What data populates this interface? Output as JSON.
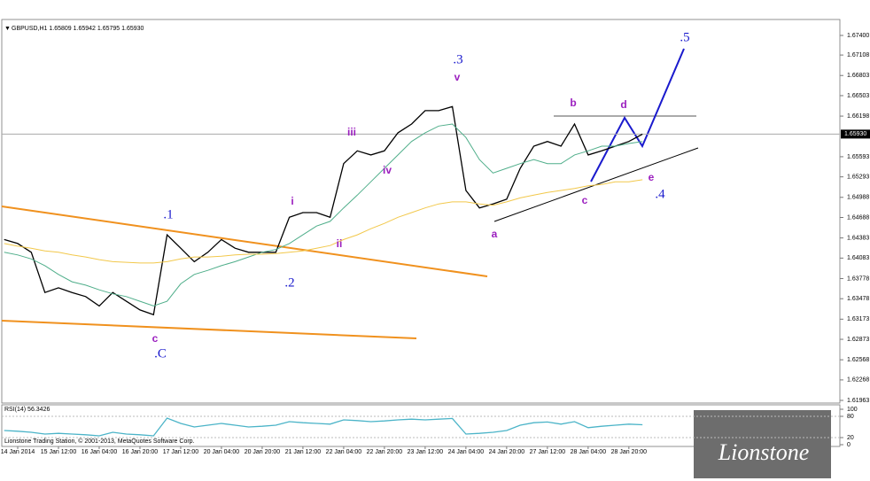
{
  "header": {
    "symbol": "GBPUSD,H1  1.65809 1.65942 1.65795 1.65930"
  },
  "footer": {
    "copyright": "Lionstone Trading Station, © 2001-2013, MetaQuotes Software Corp.",
    "logo": "Lionstone"
  },
  "chart_data": [
    {
      "type": "line",
      "categories": [
        null,
        "14 Jan 2014",
        null,
        null,
        "15 Jan 12:00",
        null,
        null,
        "16 Jan 04:00",
        null,
        null,
        "16 Jan 20:00",
        null,
        null,
        "17 Jan 12:00",
        null,
        null,
        "20 Jan 04:00",
        null,
        null,
        "20 Jan 20:00",
        null,
        null,
        "21 Jan 12:00",
        null,
        null,
        "22 Jan 04:00",
        null,
        null,
        "22 Jan 20:00",
        null,
        null,
        "23 Jan 12:00",
        null,
        null,
        "24 Jan 04:00",
        null,
        null,
        "24 Jan 20:00",
        null,
        null,
        "27 Jan 12:00",
        null,
        null,
        "28 Jan 04:00",
        null,
        null,
        "28 Jan 20:00",
        null
      ],
      "series": [
        {
          "color": "#000000",
          "values": [
            1.6436,
            1.643,
            1.6417,
            1.6357,
            1.6364,
            1.6357,
            1.6351,
            1.6337,
            1.6357,
            1.6344,
            1.6331,
            1.6324,
            1.6443,
            1.6423,
            1.6403,
            1.6417,
            1.6436,
            1.6423,
            1.6417,
            1.6417,
            1.6417,
            1.6469,
            1.6476,
            1.6476,
            1.6469,
            1.6549,
            1.6568,
            1.6562,
            1.6568,
            1.6595,
            1.6608,
            1.6628,
            1.6628,
            1.6634,
            1.6509,
            1.6483,
            1.6489,
            1.6496,
            1.6542,
            1.6575,
            1.6582,
            1.6575,
            1.6608,
            1.6562,
            1.6568,
            1.6575,
            1.6582,
            1.6593
          ]
        },
        {
          "color": "#4fae8a",
          "values": [
            1.6417,
            1.6413,
            1.6407,
            1.6397,
            1.6384,
            1.6373,
            1.6368,
            1.6361,
            1.6355,
            1.6351,
            1.6344,
            1.6337,
            1.6344,
            1.637,
            1.6384,
            1.639,
            1.6397,
            1.6403,
            1.641,
            1.6417,
            1.6421,
            1.643,
            1.6443,
            1.6456,
            1.6463,
            1.6483,
            1.6502,
            1.6522,
            1.6542,
            1.6562,
            1.6582,
            1.6595,
            1.6605,
            1.6608,
            1.6588,
            1.6555,
            1.6535,
            1.6542,
            1.6549,
            1.6555,
            1.6549,
            1.6549,
            1.6562,
            1.6568,
            1.6575,
            1.6575,
            1.6579,
            1.6582
          ]
        },
        {
          "color": "#f2c84b",
          "values": [
            1.643,
            1.6426,
            1.6423,
            1.6419,
            1.6417,
            1.6413,
            1.641,
            1.6406,
            1.6403,
            1.6402,
            1.6401,
            1.6401,
            1.6403,
            1.6407,
            1.641,
            1.641,
            1.6411,
            1.6413,
            1.6414,
            1.6414,
            1.6415,
            1.6417,
            1.6419,
            1.6423,
            1.6427,
            1.6436,
            1.6443,
            1.6452,
            1.646,
            1.6469,
            1.6476,
            1.6483,
            1.6489,
            1.6492,
            1.6492,
            1.6489,
            1.6487,
            1.6492,
            1.6498,
            1.6502,
            1.6506,
            1.6509,
            1.6512,
            1.6516,
            1.6518,
            1.6522,
            1.6522,
            1.6525
          ]
        }
      ],
      "current_price": {
        "value": 1.6593,
        "label": "1.65930"
      },
      "ylim": [
        1.61963,
        1.67545
      ],
      "yticks": [
        {
          "value": 1.674,
          "label": "1.67400"
        },
        {
          "value": 1.67108,
          "label": "1.67108"
        },
        {
          "value": 1.66803,
          "label": "1.66803"
        },
        {
          "value": 1.66503,
          "label": "1.66503"
        },
        {
          "value": 1.66198,
          "label": "1.66198"
        },
        {
          "value": 1.65593,
          "label": "1.65593"
        },
        {
          "value": 1.65293,
          "label": "1.65293"
        },
        {
          "value": 1.64988,
          "label": "1.64988"
        },
        {
          "value": 1.64688,
          "label": "1.64688"
        },
        {
          "value": 1.64383,
          "label": "1.64383"
        },
        {
          "value": 1.64083,
          "label": "1.64083"
        },
        {
          "value": 1.63778,
          "label": "1.63778"
        },
        {
          "value": 1.63478,
          "label": "1.63478"
        },
        {
          "value": 1.63173,
          "label": "1.63173"
        },
        {
          "value": 1.62873,
          "label": "1.62873"
        },
        {
          "value": 1.62568,
          "label": "1.62568"
        },
        {
          "value": 1.62268,
          "label": "1.62268"
        },
        {
          "value": 1.61963,
          "label": "1.61963"
        }
      ],
      "annotations": [
        ".5",
        ".3",
        ".1",
        ".2",
        ".4",
        ".C",
        "c",
        "i",
        "ii",
        "iii",
        "iv",
        "v",
        "a",
        "b",
        "c",
        "d",
        "e"
      ]
    },
    {
      "type": "line",
      "title": "RSI(14) 56.3426",
      "series": [
        {
          "color": "#4bb4c8",
          "values": [
            40,
            38,
            35,
            30,
            32,
            30,
            28,
            25,
            35,
            30,
            28,
            25,
            75,
            60,
            50,
            55,
            60,
            55,
            50,
            52,
            55,
            65,
            62,
            60,
            58,
            70,
            68,
            65,
            67,
            70,
            72,
            70,
            72,
            74,
            30,
            32,
            35,
            40,
            55,
            62,
            64,
            58,
            65,
            48,
            52,
            55,
            58,
            56.3426
          ]
        }
      ],
      "ylim": [
        0,
        100
      ],
      "yticks": [
        100,
        80,
        20,
        0
      ]
    }
  ]
}
